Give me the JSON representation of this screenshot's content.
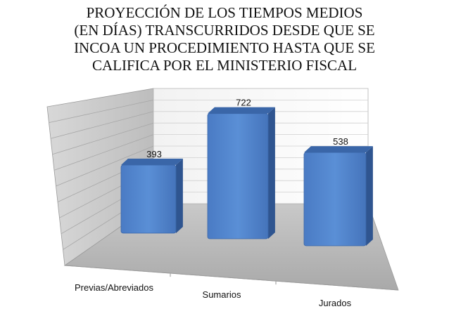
{
  "chart_data": {
    "type": "bar",
    "title_lines": [
      "PROYECCIÓN DE LOS TIEMPOS MEDIOS",
      "(EN DÍAS) TRANSCURRIDOS DESDE QUE SE",
      "INCOA UN PROCEDIMIENTO HASTA QUE SE",
      "CALIFICA POR EL MINISTERIO FISCAL"
    ],
    "categories": [
      "Previas/Abreviados",
      "Sumarios",
      "Jurados"
    ],
    "values": [
      393,
      722,
      538
    ],
    "data_labels": [
      "393",
      "722",
      "538"
    ],
    "ylim": [
      0,
      800
    ],
    "grid": true,
    "legend": "none",
    "bar_color": "#4f81bd"
  }
}
